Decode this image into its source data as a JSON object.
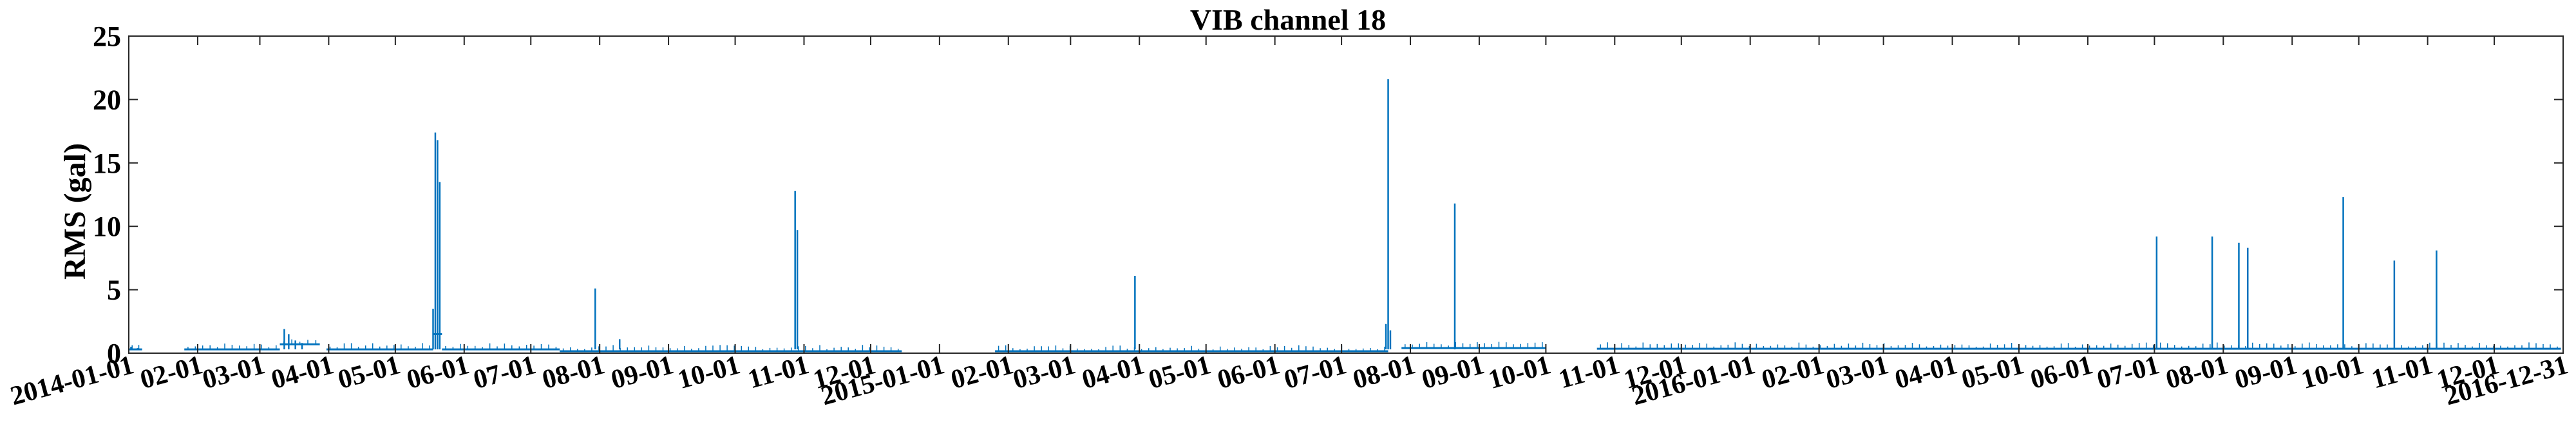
{
  "chart_data": {
    "type": "line",
    "title": "VIB channel 18",
    "xlabel": "",
    "ylabel": "RMS (gal)",
    "ylim": [
      0,
      25
    ],
    "yticks": [
      "0",
      "5",
      "10",
      "15",
      "20",
      "25"
    ],
    "xlim": [
      "2014-01-01",
      "2016-12-31"
    ],
    "xticks": [
      "2014-01-01",
      "02-01",
      "03-01",
      "04-01",
      "05-01",
      "06-01",
      "07-01",
      "08-01",
      "09-01",
      "10-01",
      "11-01",
      "12-01",
      "2015-01-01",
      "02-01",
      "03-01",
      "04-01",
      "05-01",
      "06-01",
      "07-01",
      "08-01",
      "09-01",
      "10-01",
      "11-01",
      "12-01",
      "2016-01-01",
      "02-01",
      "03-01",
      "04-01",
      "05-01",
      "06-01",
      "07-01",
      "08-01",
      "09-01",
      "10-01",
      "11-01",
      "12-01",
      "2016-12-31"
    ],
    "grid": false,
    "line_color": "#0072BD",
    "series": [
      {
        "baseline_segments": [
          {
            "start": "2014-01-01",
            "end": "2014-01-07",
            "value": 0.3
          },
          {
            "start": "2014-01-26",
            "end": "2014-03-10",
            "value": 0.3
          },
          {
            "start": "2014-03-10",
            "end": "2014-03-28",
            "value": 0.7
          },
          {
            "start": "2014-03-31",
            "end": "2014-05-18",
            "value": 0.3
          },
          {
            "start": "2014-05-18",
            "end": "2014-05-22",
            "value": 1.5
          },
          {
            "start": "2014-05-22",
            "end": "2014-07-14",
            "value": 0.3
          },
          {
            "start": "2014-07-14",
            "end": "2014-12-15",
            "value": 0.15
          },
          {
            "start": "2015-01-26",
            "end": "2015-07-22",
            "value": 0.15
          },
          {
            "start": "2015-07-28",
            "end": "2015-10-01",
            "value": 0.4
          },
          {
            "start": "2015-10-24",
            "end": "2016-12-31",
            "value": 0.35
          }
        ],
        "spikes": [
          {
            "date": "2014-01-02",
            "value": 0.5
          },
          {
            "date": "2014-01-05",
            "value": 0.4
          },
          {
            "date": "2014-03-12",
            "value": 1.9
          },
          {
            "date": "2014-03-14",
            "value": 1.5
          },
          {
            "date": "2014-03-17",
            "value": 1.0
          },
          {
            "date": "2014-03-20",
            "value": 0.8
          },
          {
            "date": "2014-05-18",
            "value": 3.5
          },
          {
            "date": "2014-05-19",
            "value": 17.4
          },
          {
            "date": "2014-05-20",
            "value": 16.8
          },
          {
            "date": "2014-05-21",
            "value": 13.5
          },
          {
            "date": "2014-07-30",
            "value": 5.1
          },
          {
            "date": "2014-08-10",
            "value": 1.1
          },
          {
            "date": "2014-10-28",
            "value": 12.8
          },
          {
            "date": "2014-10-29",
            "value": 9.7
          },
          {
            "date": "2015-03-30",
            "value": 6.1
          },
          {
            "date": "2015-07-21",
            "value": 2.3
          },
          {
            "date": "2015-07-22",
            "value": 21.6
          },
          {
            "date": "2015-07-23",
            "value": 1.8
          },
          {
            "date": "2015-08-21",
            "value": 11.8
          },
          {
            "date": "2016-07-02",
            "value": 9.2
          },
          {
            "date": "2016-07-27",
            "value": 9.2
          },
          {
            "date": "2016-08-08",
            "value": 8.7
          },
          {
            "date": "2016-08-12",
            "value": 8.3
          },
          {
            "date": "2016-09-24",
            "value": 12.3
          },
          {
            "date": "2016-10-17",
            "value": 7.3
          },
          {
            "date": "2016-11-05",
            "value": 8.1
          }
        ]
      }
    ]
  }
}
